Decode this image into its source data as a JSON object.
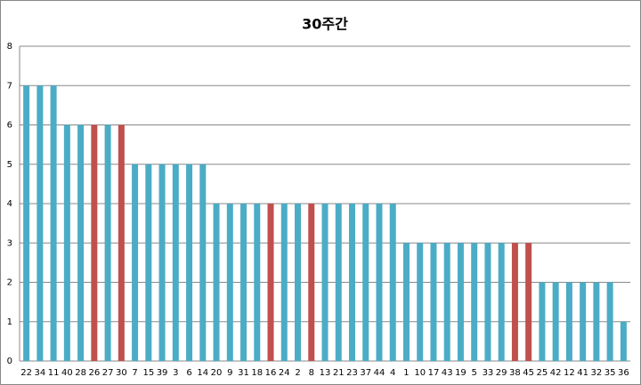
{
  "chart_data": {
    "type": "bar",
    "title": "30주간",
    "categories": [
      "22",
      "34",
      "11",
      "40",
      "28",
      "26",
      "27",
      "30",
      "7",
      "15",
      "39",
      "3",
      "6",
      "14",
      "20",
      "9",
      "31",
      "18",
      "16",
      "24",
      "2",
      "8",
      "13",
      "21",
      "23",
      "37",
      "44",
      "4",
      "1",
      "10",
      "17",
      "43",
      "19",
      "5",
      "33",
      "29",
      "38",
      "45",
      "25",
      "42",
      "12",
      "41",
      "32",
      "35",
      "36"
    ],
    "values": [
      7,
      7,
      7,
      6,
      6,
      6,
      6,
      6,
      5,
      5,
      5,
      5,
      5,
      5,
      4,
      4,
      4,
      4,
      4,
      4,
      4,
      4,
      4,
      4,
      4,
      4,
      4,
      4,
      3,
      3,
      3,
      3,
      3,
      3,
      3,
      3,
      3,
      3,
      2,
      2,
      2,
      2,
      2,
      2,
      1
    ],
    "colors": [
      "#4bacc6",
      "#4bacc6",
      "#4bacc6",
      "#4bacc6",
      "#4bacc6",
      "#c0504d",
      "#4bacc6",
      "#c0504d",
      "#4bacc6",
      "#4bacc6",
      "#4bacc6",
      "#4bacc6",
      "#4bacc6",
      "#4bacc6",
      "#4bacc6",
      "#4bacc6",
      "#4bacc6",
      "#4bacc6",
      "#c0504d",
      "#4bacc6",
      "#4bacc6",
      "#c0504d",
      "#4bacc6",
      "#4bacc6",
      "#4bacc6",
      "#4bacc6",
      "#4bacc6",
      "#4bacc6",
      "#4bacc6",
      "#4bacc6",
      "#4bacc6",
      "#4bacc6",
      "#4bacc6",
      "#4bacc6",
      "#4bacc6",
      "#4bacc6",
      "#c0504d",
      "#c0504d",
      "#4bacc6",
      "#4bacc6",
      "#4bacc6",
      "#4bacc6",
      "#4bacc6",
      "#4bacc6",
      "#4bacc6"
    ],
    "ylim": [
      0,
      8
    ],
    "yticks": [
      0,
      1,
      2,
      3,
      4,
      5,
      6,
      7,
      8
    ],
    "grid": true
  }
}
